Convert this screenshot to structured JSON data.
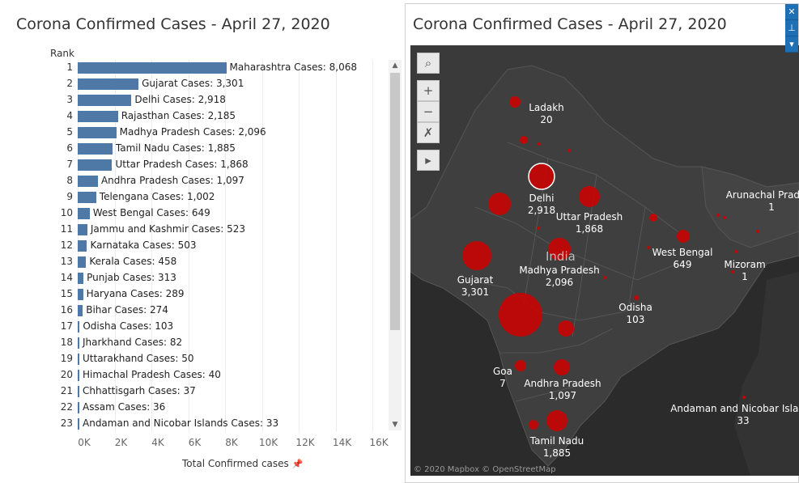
{
  "left_title": "Corona Confirmed Cases - April 27, 2020",
  "right_title": "Corona Confirmed Cases - April 27, 2020",
  "rank_header": "Rank",
  "x_axis_title": "Total Confirmed cases",
  "map_credit": "© 2020 Mapbox © OpenStreetMap",
  "country_label": "India",
  "colors": {
    "bar": "#4e79a7",
    "bubble": "#d10000",
    "map_bg": "#2b2b2b"
  },
  "chart_data": [
    {
      "type": "bar",
      "orientation": "horizontal",
      "title": "Corona Confirmed Cases - April 27, 2020",
      "xlabel": "Total Confirmed cases",
      "ylabel": "Rank",
      "xlim": [
        0,
        16000
      ],
      "x_ticks": [
        "0K",
        "2K",
        "4K",
        "6K",
        "8K",
        "10K",
        "12K",
        "14K",
        "16K"
      ],
      "rows": [
        {
          "rank": "1",
          "state": "Maharashtra",
          "value": 8068,
          "label": "Maharashtra Cases: 8,068"
        },
        {
          "rank": "2",
          "state": "Gujarat",
          "value": 3301,
          "label": "Gujarat Cases: 3,301"
        },
        {
          "rank": "3",
          "state": "Delhi",
          "value": 2918,
          "label": "Delhi Cases: 2,918"
        },
        {
          "rank": "4",
          "state": "Rajasthan",
          "value": 2185,
          "label": "Rajasthan Cases: 2,185"
        },
        {
          "rank": "5",
          "state": "Madhya Pradesh",
          "value": 2096,
          "label": "Madhya Pradesh Cases: 2,096"
        },
        {
          "rank": "6",
          "state": "Tamil Nadu",
          "value": 1885,
          "label": "Tamil Nadu Cases: 1,885"
        },
        {
          "rank": "7",
          "state": "Uttar Pradesh",
          "value": 1868,
          "label": "Uttar Pradesh Cases: 1,868"
        },
        {
          "rank": "8",
          "state": "Andhra Pradesh",
          "value": 1097,
          "label": "Andhra Pradesh Cases: 1,097"
        },
        {
          "rank": "9",
          "state": "Telengana",
          "value": 1002,
          "label": "Telengana Cases: 1,002"
        },
        {
          "rank": "10",
          "state": "West Bengal",
          "value": 649,
          "label": "West Bengal Cases: 649"
        },
        {
          "rank": "11",
          "state": "Jammu and Kashmir",
          "value": 523,
          "label": "Jammu and Kashmir Cases: 523"
        },
        {
          "rank": "12",
          "state": "Karnataka",
          "value": 503,
          "label": "Karnataka Cases: 503"
        },
        {
          "rank": "13",
          "state": "Kerala",
          "value": 458,
          "label": "Kerala Cases: 458"
        },
        {
          "rank": "14",
          "state": "Punjab",
          "value": 313,
          "label": "Punjab Cases: 313"
        },
        {
          "rank": "15",
          "state": "Haryana",
          "value": 289,
          "label": "Haryana Cases: 289"
        },
        {
          "rank": "16",
          "state": "Bihar",
          "value": 274,
          "label": "Bihar Cases: 274"
        },
        {
          "rank": "17",
          "state": "Odisha",
          "value": 103,
          "label": "Odisha Cases: 103"
        },
        {
          "rank": "18",
          "state": "Jharkhand",
          "value": 82,
          "label": "Jharkhand Cases: 82"
        },
        {
          "rank": "19",
          "state": "Uttarakhand",
          "value": 50,
          "label": "Uttarakhand Cases: 50"
        },
        {
          "rank": "20",
          "state": "Himachal Pradesh",
          "value": 40,
          "label": "Himachal Pradesh Cases: 40"
        },
        {
          "rank": "21",
          "state": "Chhattisgarh",
          "value": 37,
          "label": "Chhattisgarh Cases: 37"
        },
        {
          "rank": "22",
          "state": "Assam",
          "value": 36,
          "label": "Assam Cases: 36"
        },
        {
          "rank": "23",
          "state": "Andaman and Nicobar Islands",
          "value": 33,
          "label": "Andaman and Nicobar Islands Cases: 33"
        }
      ]
    },
    {
      "type": "scatter",
      "subtype": "symbol-map",
      "title": "Corona Confirmed Cases - April 27, 2020",
      "labeled_points": [
        {
          "name": "Ladakh",
          "value": "20"
        },
        {
          "name": "Delhi",
          "value": "2,918"
        },
        {
          "name": "Uttar Pradesh",
          "value": "1,868"
        },
        {
          "name": "Arunachal Pradesh",
          "value": "1"
        },
        {
          "name": "West Bengal",
          "value": "649"
        },
        {
          "name": "Mizoram",
          "value": "1"
        },
        {
          "name": "Madhya Pradesh",
          "value": "2,096"
        },
        {
          "name": "Gujarat",
          "value": "3,301"
        },
        {
          "name": "Odisha",
          "value": "103"
        },
        {
          "name": "Goa",
          "value": "7"
        },
        {
          "name": "Andhra Pradesh",
          "value": "1,097"
        },
        {
          "name": "Andaman and Nicobar Islands",
          "value": "33"
        },
        {
          "name": "Tamil Nadu",
          "value": "1,885"
        }
      ]
    }
  ]
}
